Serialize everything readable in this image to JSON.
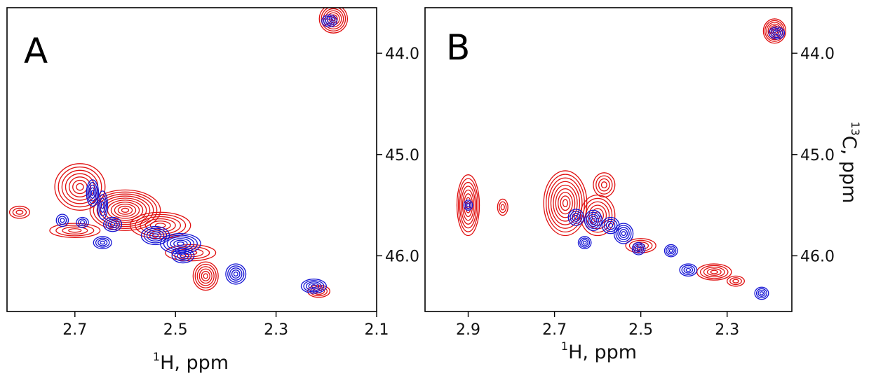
{
  "chart_data": [
    {
      "type": "contour",
      "panel_label": "A",
      "xlabel_sup": "1",
      "xlabel": "H, ppm",
      "ylabel_sup": "",
      "ylabel": "",
      "xlim": [
        2.835,
        2.1
      ],
      "ylim": [
        43.55,
        46.55
      ],
      "x_ticks": [
        "2.7",
        "2.5",
        "2.3",
        "2.1"
      ],
      "y_ticks": [
        "44.0",
        "45.0",
        "46.0"
      ],
      "series": [
        {
          "color": "#e01010",
          "peaks": [
            {
              "x": 2.186,
              "y": 43.66,
              "rx": 0.028,
              "ry": 0.14,
              "levels": 7
            },
            {
              "x": 2.69,
              "y": 45.32,
              "rx": 0.05,
              "ry": 0.23,
              "levels": 7
            },
            {
              "x": 2.6,
              "y": 45.55,
              "rx": 0.07,
              "ry": 0.2,
              "levels": 10
            },
            {
              "x": 2.53,
              "y": 45.7,
              "rx": 0.06,
              "ry": 0.13,
              "levels": 6
            },
            {
              "x": 2.7,
              "y": 45.75,
              "rx": 0.05,
              "ry": 0.07,
              "levels": 4
            },
            {
              "x": 2.81,
              "y": 45.57,
              "rx": 0.02,
              "ry": 0.06,
              "levels": 3
            },
            {
              "x": 2.47,
              "y": 45.97,
              "rx": 0.05,
              "ry": 0.08,
              "levels": 4
            },
            {
              "x": 2.44,
              "y": 46.2,
              "rx": 0.025,
              "ry": 0.14,
              "levels": 6
            },
            {
              "x": 2.215,
              "y": 46.35,
              "rx": 0.022,
              "ry": 0.06,
              "levels": 4
            }
          ]
        },
        {
          "color": "#1414d4",
          "peaks": [
            {
              "x": 2.194,
              "y": 43.68,
              "rx": 0.015,
              "ry": 0.06,
              "levels": 4
            },
            {
              "x": 2.665,
              "y": 45.38,
              "rx": 0.012,
              "ry": 0.13,
              "levels": 5
            },
            {
              "x": 2.645,
              "y": 45.5,
              "rx": 0.01,
              "ry": 0.14,
              "levels": 4
            },
            {
              "x": 2.725,
              "y": 45.65,
              "rx": 0.012,
              "ry": 0.06,
              "levels": 3
            },
            {
              "x": 2.685,
              "y": 45.67,
              "rx": 0.012,
              "ry": 0.05,
              "levels": 3
            },
            {
              "x": 2.625,
              "y": 45.69,
              "rx": 0.018,
              "ry": 0.07,
              "levels": 4
            },
            {
              "x": 2.645,
              "y": 45.87,
              "rx": 0.018,
              "ry": 0.06,
              "levels": 4
            },
            {
              "x": 2.54,
              "y": 45.8,
              "rx": 0.028,
              "ry": 0.09,
              "levels": 5
            },
            {
              "x": 2.49,
              "y": 45.88,
              "rx": 0.04,
              "ry": 0.1,
              "levels": 6
            },
            {
              "x": 2.485,
              "y": 46.0,
              "rx": 0.022,
              "ry": 0.07,
              "levels": 4
            },
            {
              "x": 2.38,
              "y": 46.18,
              "rx": 0.02,
              "ry": 0.1,
              "levels": 5
            },
            {
              "x": 2.225,
              "y": 46.3,
              "rx": 0.025,
              "ry": 0.07,
              "levels": 5
            }
          ]
        }
      ]
    },
    {
      "type": "contour",
      "panel_label": "B",
      "xlabel_sup": "1",
      "xlabel": "H, ppm",
      "ylabel_sup": "13",
      "ylabel": "C, ppm",
      "xlim": [
        3.0,
        2.15
      ],
      "ylim": [
        43.55,
        46.55
      ],
      "x_ticks": [
        "2.9",
        "2.7",
        "2.5",
        "2.3"
      ],
      "y_ticks": [
        "44.0",
        "45.0",
        "46.0"
      ],
      "series": [
        {
          "color": "#e01010",
          "peaks": [
            {
              "x": 2.19,
              "y": 43.78,
              "rx": 0.026,
              "ry": 0.12,
              "levels": 7
            },
            {
              "x": 2.9,
              "y": 45.5,
              "rx": 0.026,
              "ry": 0.3,
              "levels": 8
            },
            {
              "x": 2.82,
              "y": 45.52,
              "rx": 0.012,
              "ry": 0.08,
              "levels": 3
            },
            {
              "x": 2.675,
              "y": 45.48,
              "rx": 0.05,
              "ry": 0.32,
              "levels": 9
            },
            {
              "x": 2.6,
              "y": 45.6,
              "rx": 0.04,
              "ry": 0.2,
              "levels": 6
            },
            {
              "x": 2.585,
              "y": 45.3,
              "rx": 0.025,
              "ry": 0.12,
              "levels": 4
            },
            {
              "x": 2.5,
              "y": 45.9,
              "rx": 0.035,
              "ry": 0.07,
              "levels": 4
            },
            {
              "x": 2.33,
              "y": 46.16,
              "rx": 0.04,
              "ry": 0.08,
              "levels": 5
            },
            {
              "x": 2.28,
              "y": 46.25,
              "rx": 0.02,
              "ry": 0.05,
              "levels": 3
            }
          ]
        },
        {
          "color": "#1414d4",
          "peaks": [
            {
              "x": 2.185,
              "y": 43.8,
              "rx": 0.018,
              "ry": 0.06,
              "levels": 4
            },
            {
              "x": 2.9,
              "y": 45.5,
              "rx": 0.01,
              "ry": 0.05,
              "levels": 3
            },
            {
              "x": 2.65,
              "y": 45.62,
              "rx": 0.018,
              "ry": 0.08,
              "levels": 4
            },
            {
              "x": 2.61,
              "y": 45.65,
              "rx": 0.02,
              "ry": 0.1,
              "levels": 5
            },
            {
              "x": 2.57,
              "y": 45.7,
              "rx": 0.02,
              "ry": 0.08,
              "levels": 4
            },
            {
              "x": 2.54,
              "y": 45.78,
              "rx": 0.022,
              "ry": 0.1,
              "levels": 5
            },
            {
              "x": 2.63,
              "y": 45.87,
              "rx": 0.015,
              "ry": 0.06,
              "levels": 4
            },
            {
              "x": 2.505,
              "y": 45.93,
              "rx": 0.015,
              "ry": 0.06,
              "levels": 4
            },
            {
              "x": 2.43,
              "y": 45.95,
              "rx": 0.015,
              "ry": 0.06,
              "levels": 4
            },
            {
              "x": 2.39,
              "y": 46.14,
              "rx": 0.02,
              "ry": 0.06,
              "levels": 4
            },
            {
              "x": 2.22,
              "y": 46.37,
              "rx": 0.016,
              "ry": 0.06,
              "levels": 4
            }
          ]
        }
      ]
    }
  ]
}
